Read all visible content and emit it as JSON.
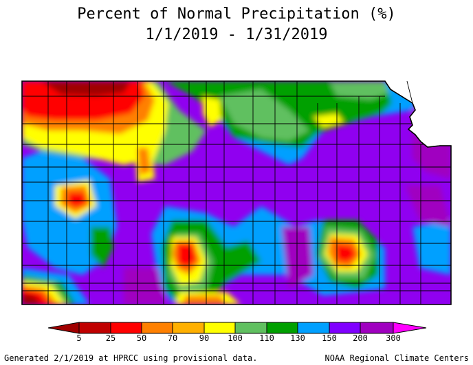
{
  "title": "Percent of Normal Precipitation (%)",
  "date_range": "1/1/2019 - 1/31/2019",
  "legend": {
    "thresholds": [
      "5",
      "25",
      "50",
      "70",
      "90",
      "100",
      "110",
      "130",
      "150",
      "200",
      "300"
    ],
    "colors": [
      "#a00000",
      "#ff0000",
      "#ff8000",
      "#ffd000",
      "#ffff00",
      "#60c060",
      "#00a000",
      "#00a0ff",
      "#8000ff",
      "#a000c0",
      "#ff00ff"
    ]
  },
  "footer": {
    "left": "Generated 2/1/2019 at HPRCC using provisional data.",
    "right": "NOAA Regional Climate Centers"
  }
}
